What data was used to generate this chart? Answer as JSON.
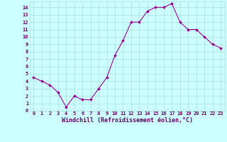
{
  "x": [
    0,
    1,
    2,
    3,
    4,
    5,
    6,
    7,
    8,
    9,
    10,
    11,
    12,
    13,
    14,
    15,
    16,
    17,
    18,
    19,
    20,
    21,
    22,
    23
  ],
  "y": [
    4.5,
    4.0,
    3.5,
    2.5,
    0.5,
    2.0,
    1.5,
    1.5,
    3.0,
    4.5,
    7.5,
    9.5,
    12.0,
    12.0,
    13.5,
    14.0,
    14.0,
    14.5,
    12.0,
    11.0,
    11.0,
    10.0,
    9.0,
    8.5
  ],
  "line_color": "#990099",
  "marker_color": "#990099",
  "bg_color": "#ccffff",
  "grid_color": "#aadddd",
  "xlabel": "Windchill (Refroidissement éolien,°C)",
  "xlabel_color": "#660066",
  "tick_color": "#660066",
  "ylim": [
    0,
    14.8
  ],
  "xlim": [
    -0.5,
    23.5
  ],
  "yticks": [
    0,
    1,
    2,
    3,
    4,
    5,
    6,
    7,
    8,
    9,
    10,
    11,
    12,
    13,
    14
  ],
  "xticks": [
    0,
    1,
    2,
    3,
    4,
    5,
    6,
    7,
    8,
    9,
    10,
    11,
    12,
    13,
    14,
    15,
    16,
    17,
    18,
    19,
    20,
    21,
    22,
    23
  ],
  "xtick_labels": [
    "0",
    "1",
    "2",
    "3",
    "4",
    "5",
    "6",
    "7",
    "8",
    "9",
    "10",
    "11",
    "12",
    "13",
    "14",
    "15",
    "16",
    "17",
    "18",
    "19",
    "20",
    "21",
    "22",
    "23"
  ],
  "ytick_labels": [
    "0",
    "1",
    "2",
    "3",
    "4",
    "5",
    "6",
    "7",
    "8",
    "9",
    "10",
    "11",
    "12",
    "13",
    "14"
  ],
  "font_family": "monospace",
  "tick_fontsize": 5.0,
  "xlabel_fontsize": 6.0
}
